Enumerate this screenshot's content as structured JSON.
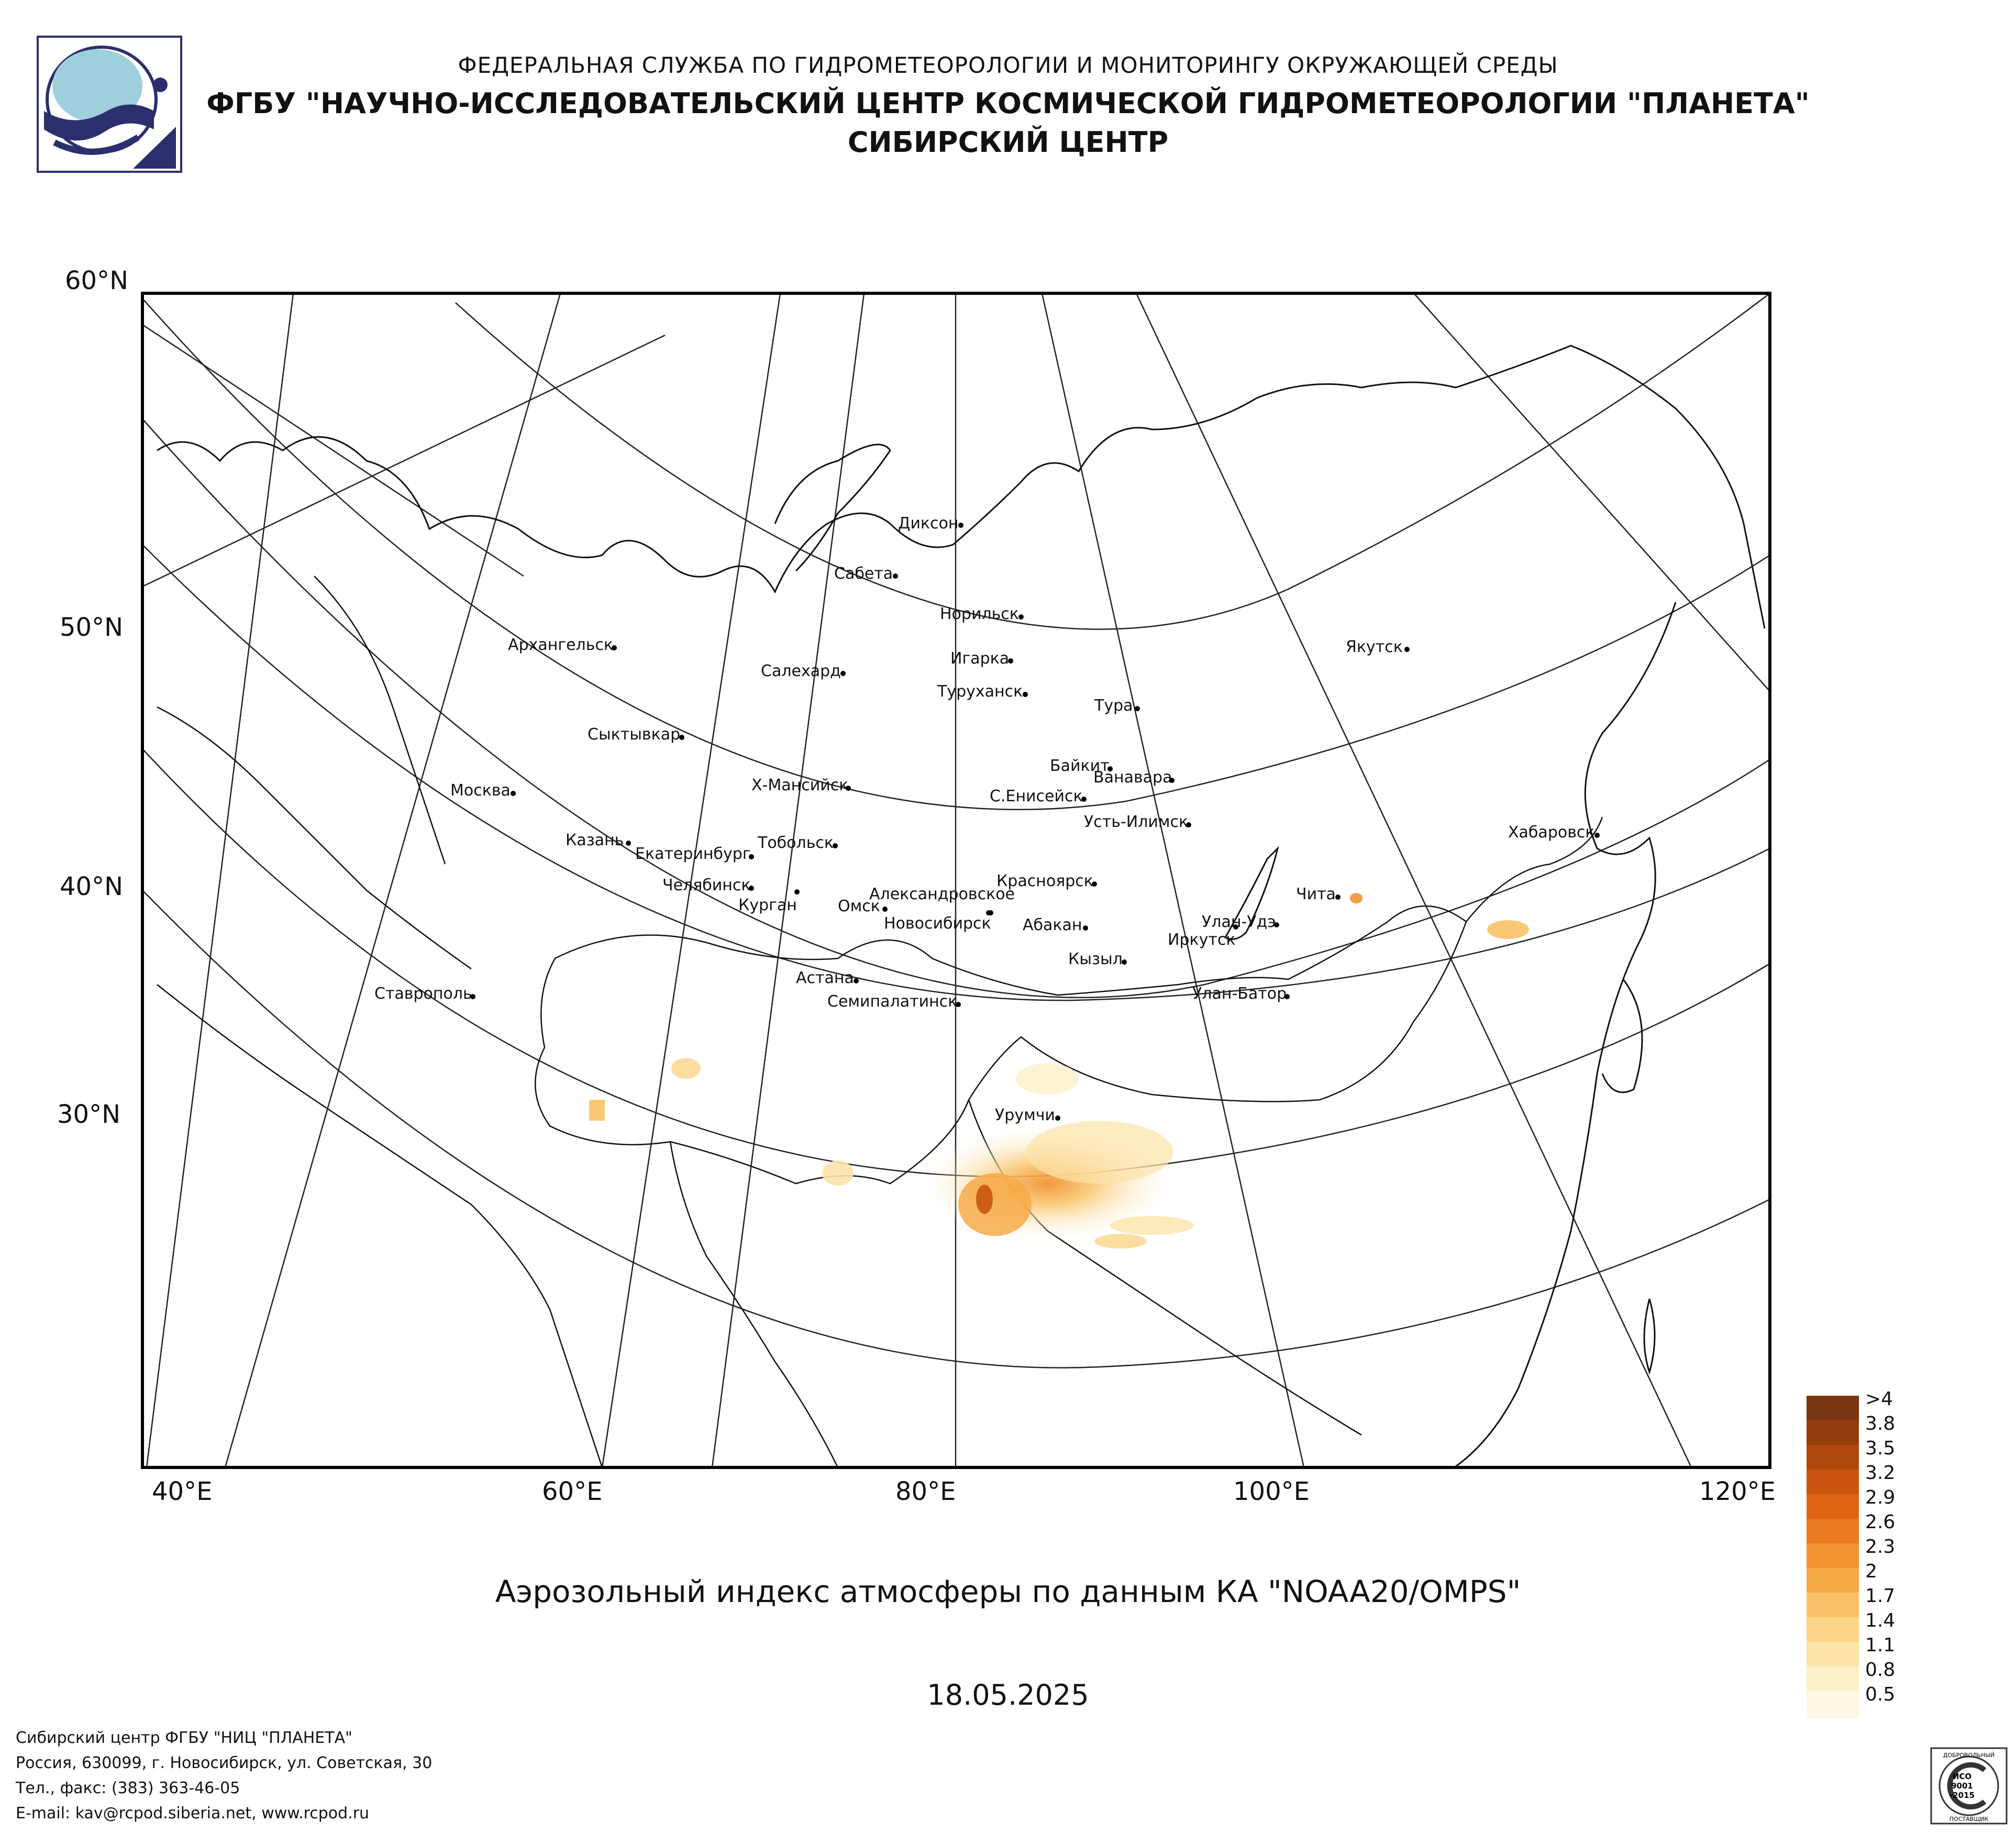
{
  "header": {
    "line1": "ФЕДЕРАЛЬНАЯ СЛУЖБА ПО ГИДРОМЕТЕОРОЛОГИИ И МОНИТОРИНГУ ОКРУЖАЮЩЕЙ СРЕДЫ",
    "line2": "ФГБУ \"НАУЧНО-ИССЛЕДОВАТЕЛЬСКИЙ ЦЕНТР КОСМИЧЕСКОЙ ГИДРОМЕТЕОРОЛОГИИ \"ПЛАНЕТА\"",
    "line3": "СИБИРСКИЙ ЦЕНТР"
  },
  "map": {
    "lat_labels": [
      "60°N",
      "50°N",
      "40°N",
      "30°N"
    ],
    "lon_labels": [
      "40°E",
      "60°E",
      "80°E",
      "100°E",
      "120°E"
    ],
    "cities": [
      "Диксон",
      "Сабета",
      "Норильск",
      "Игарка",
      "Салехард",
      "Туруханск",
      "Тура",
      "Якутск",
      "Архангельск",
      "Сыктывкар",
      "Москва",
      "Х-Мансийск",
      "Байкит",
      "Ванавара",
      "С.Енисейск",
      "Усть-Илимск",
      "Казань",
      "Екатеринбург",
      "Тобольск",
      "Хабаровск",
      "Челябинск",
      "Курган",
      "Александровское",
      "Омск",
      "Новосибирск",
      "Красноярск",
      "Абакан",
      "Чита",
      "Улан-Удэ",
      "Иркутск",
      "Кызыл",
      "Астана",
      "Семипалатинск",
      "Ставрополь",
      "Улан-Батор",
      "Урумчи"
    ],
    "colors": {
      "frame": "#000000",
      "coast": "#000000",
      "grid": "#000000"
    }
  },
  "caption": "Аэрозольный индекс атмосферы по данным КА \"NOAA20/OMPS\"",
  "date": "18.05.2025",
  "legend": {
    "labels": [
      ">4",
      "3.8",
      "3.5",
      "3.2",
      "2.9",
      "2.6",
      "2.3",
      "2",
      "1.7",
      "1.4",
      "1.1",
      "0.8",
      "0.5"
    ],
    "colors": [
      "#7a3512",
      "#943d0d",
      "#b0470c",
      "#c9540d",
      "#de6516",
      "#ea7a22",
      "#f29233",
      "#f7aa48",
      "#f9c266",
      "#fbd488",
      "#fce3a8",
      "#fdefc8",
      "#fef8e4"
    ]
  },
  "footer": {
    "line1": "Сибирский центр ФГБУ \"НИЦ \"ПЛАНЕТА\"",
    "line2": "Россия, 630099, г. Новосибирск, ул. Советская, 30",
    "line3": "Тел., факс: (383) 363-46-05",
    "line4": "E-mail: kav@rcpod.siberia.net, www.rcpod.ru"
  },
  "iso_badge": {
    "top": "ДОБРОВОЛЬНЫЙ",
    "l1": "ИСО",
    "l2": "9001",
    "l3": "-2015",
    "bottom": "ПОСТАВЩИК"
  }
}
